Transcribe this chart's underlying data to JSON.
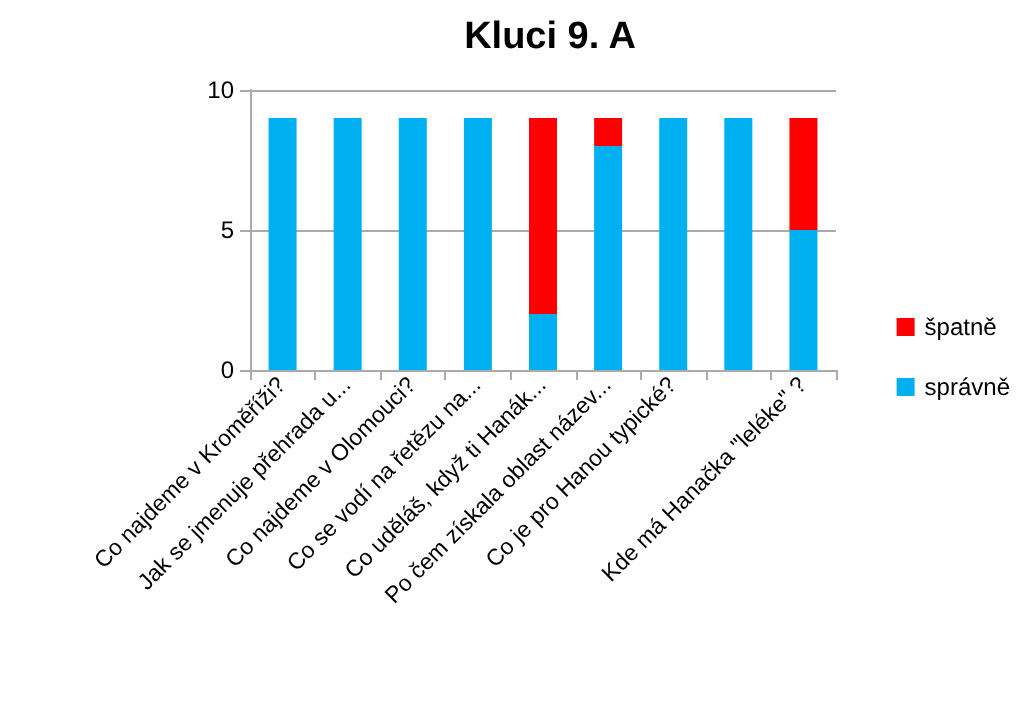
{
  "chart_data": {
    "type": "bar",
    "title": "Kluci 9. A",
    "stacked": true,
    "categories": [
      "Co najdeme v Kroměříži?",
      "Jak se jmenuje přehrada u...",
      "Co najdeme v Olomouci?",
      "Co se vodí na řetězu na...",
      "Co uděláš, když ti Hanák...",
      "Po čem získala oblast název...",
      "Co je pro Hanou typické?",
      null,
      "Kde má Hanačka \"leléke\" ?"
    ],
    "series": [
      {
        "name": "správně",
        "color": "#00b0f0",
        "values": [
          9,
          9,
          9,
          9,
          2,
          8,
          9,
          9,
          5
        ]
      },
      {
        "name": "špatně",
        "color": "#ff0000",
        "values": [
          0,
          0,
          0,
          0,
          7,
          1,
          0,
          0,
          4
        ]
      }
    ],
    "ylim": [
      0,
      10
    ],
    "yticks": [
      0,
      5,
      10
    ],
    "grid": "y",
    "legend": "right"
  }
}
